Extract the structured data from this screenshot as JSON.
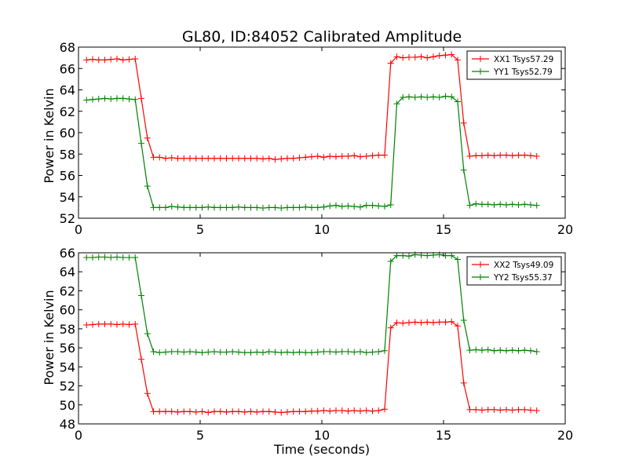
{
  "chart_data": [
    {
      "type": "line",
      "title": "GL80, ID:84052 Calibrated Amplitude",
      "xlabel": "",
      "ylabel": "Power in Kelvin",
      "xlim": [
        0,
        20
      ],
      "ylim": [
        52,
        68
      ],
      "xticks": [
        "0",
        "5",
        "10",
        "15",
        "20"
      ],
      "yticks": [
        "52",
        "54",
        "56",
        "58",
        "60",
        "62",
        "64",
        "66",
        "68"
      ],
      "legend_position": "top-right",
      "grid": false,
      "x": [
        0.33,
        0.58,
        0.83,
        1.08,
        1.33,
        1.58,
        1.83,
        2.08,
        2.33,
        2.58,
        2.83,
        3.08,
        3.33,
        3.58,
        3.83,
        4.08,
        4.33,
        4.58,
        4.83,
        5.08,
        5.33,
        5.58,
        5.83,
        6.08,
        6.33,
        6.58,
        6.83,
        7.08,
        7.33,
        7.58,
        7.83,
        8.08,
        8.33,
        8.58,
        8.83,
        9.08,
        9.33,
        9.58,
        9.83,
        10.08,
        10.33,
        10.58,
        10.83,
        11.08,
        11.33,
        11.58,
        11.83,
        12.08,
        12.33,
        12.58,
        12.83,
        13.08,
        13.33,
        13.58,
        13.83,
        14.08,
        14.33,
        14.58,
        14.83,
        15.08,
        15.33,
        15.58,
        15.83,
        16.08,
        16.33,
        16.58,
        16.83,
        17.08,
        17.33,
        17.58,
        17.83,
        18.08,
        18.33,
        18.58,
        18.83
      ],
      "series": [
        {
          "name": "XX1 Tsys57.29",
          "color": "#ff0000",
          "values": [
            66.8,
            66.85,
            66.8,
            66.8,
            66.85,
            66.9,
            66.8,
            66.85,
            66.9,
            63.2,
            59.5,
            57.7,
            57.7,
            57.6,
            57.65,
            57.6,
            57.6,
            57.6,
            57.6,
            57.6,
            57.6,
            57.6,
            57.6,
            57.6,
            57.6,
            57.6,
            57.6,
            57.6,
            57.6,
            57.55,
            57.6,
            57.5,
            57.55,
            57.6,
            57.6,
            57.65,
            57.7,
            57.75,
            57.8,
            57.7,
            57.8,
            57.75,
            57.8,
            57.8,
            57.85,
            57.75,
            57.8,
            57.85,
            57.9,
            57.9,
            66.5,
            67.1,
            67.0,
            67.05,
            67.05,
            67.1,
            67.0,
            67.1,
            67.2,
            67.25,
            67.3,
            66.8,
            60.9,
            57.8,
            57.85,
            57.85,
            57.9,
            57.85,
            57.9,
            57.9,
            57.85,
            57.9,
            57.9,
            57.85,
            57.8
          ]
        },
        {
          "name": "YY1 Tsys52.79",
          "color": "#008000",
          "values": [
            63.05,
            63.1,
            63.15,
            63.2,
            63.15,
            63.2,
            63.2,
            63.15,
            63.1,
            59.0,
            55.0,
            53.0,
            53.0,
            53.0,
            53.1,
            53.05,
            53.0,
            53.0,
            53.0,
            53.0,
            53.05,
            53.0,
            53.0,
            53.0,
            53.0,
            53.05,
            53.0,
            53.0,
            53.0,
            52.95,
            53.0,
            53.0,
            52.95,
            53.0,
            53.0,
            53.0,
            53.05,
            53.0,
            53.0,
            53.05,
            53.15,
            53.2,
            53.1,
            53.15,
            53.1,
            53.05,
            53.2,
            53.2,
            53.15,
            53.1,
            53.25,
            62.7,
            63.3,
            63.35,
            63.3,
            63.35,
            63.3,
            63.35,
            63.3,
            63.4,
            63.35,
            62.9,
            56.5,
            53.2,
            53.35,
            53.3,
            53.3,
            53.25,
            53.3,
            53.25,
            53.3,
            53.25,
            53.3,
            53.25,
            53.2
          ]
        }
      ]
    },
    {
      "type": "line",
      "title": "",
      "xlabel": "Time (seconds)",
      "ylabel": "Power in Kelvin",
      "xlim": [
        0,
        20
      ],
      "ylim": [
        48,
        66
      ],
      "xticks": [
        "0",
        "5",
        "10",
        "15",
        "20"
      ],
      "yticks": [
        "48",
        "50",
        "52",
        "54",
        "56",
        "58",
        "60",
        "62",
        "64",
        "66"
      ],
      "legend_position": "top-right",
      "grid": false,
      "x": [
        0.33,
        0.58,
        0.83,
        1.08,
        1.33,
        1.58,
        1.83,
        2.08,
        2.33,
        2.58,
        2.83,
        3.08,
        3.33,
        3.58,
        3.83,
        4.08,
        4.33,
        4.58,
        4.83,
        5.08,
        5.33,
        5.58,
        5.83,
        6.08,
        6.33,
        6.58,
        6.83,
        7.08,
        7.33,
        7.58,
        7.83,
        8.08,
        8.33,
        8.58,
        8.83,
        9.08,
        9.33,
        9.58,
        9.83,
        10.08,
        10.33,
        10.58,
        10.83,
        11.08,
        11.33,
        11.58,
        11.83,
        12.08,
        12.33,
        12.58,
        12.83,
        13.08,
        13.33,
        13.58,
        13.83,
        14.08,
        14.33,
        14.58,
        14.83,
        15.08,
        15.33,
        15.58,
        15.83,
        16.08,
        16.33,
        16.58,
        16.83,
        17.08,
        17.33,
        17.58,
        17.83,
        18.08,
        18.33,
        18.58,
        18.83
      ],
      "series": [
        {
          "name": "XX2 Tsys49.09",
          "color": "#ff0000",
          "values": [
            58.4,
            58.45,
            58.5,
            58.5,
            58.5,
            58.45,
            58.5,
            58.45,
            58.5,
            54.8,
            51.2,
            49.3,
            49.3,
            49.3,
            49.3,
            49.25,
            49.3,
            49.3,
            49.25,
            49.3,
            49.2,
            49.3,
            49.3,
            49.25,
            49.3,
            49.3,
            49.25,
            49.3,
            49.25,
            49.3,
            49.3,
            49.25,
            49.2,
            49.25,
            49.3,
            49.3,
            49.3,
            49.35,
            49.35,
            49.4,
            49.35,
            49.4,
            49.4,
            49.35,
            49.4,
            49.35,
            49.4,
            49.35,
            49.4,
            49.55,
            58.1,
            58.65,
            58.6,
            58.65,
            58.7,
            58.65,
            58.7,
            58.65,
            58.7,
            58.7,
            58.75,
            58.3,
            52.3,
            49.5,
            49.5,
            49.45,
            49.5,
            49.5,
            49.45,
            49.5,
            49.45,
            49.5,
            49.5,
            49.45,
            49.4
          ]
        },
        {
          "name": "YY2 Tsys55.37",
          "color": "#008000",
          "values": [
            65.5,
            65.5,
            65.55,
            65.55,
            65.5,
            65.55,
            65.5,
            65.5,
            65.5,
            61.5,
            57.5,
            55.6,
            55.5,
            55.55,
            55.6,
            55.6,
            55.55,
            55.6,
            55.55,
            55.5,
            55.55,
            55.6,
            55.55,
            55.55,
            55.6,
            55.55,
            55.5,
            55.5,
            55.55,
            55.5,
            55.6,
            55.55,
            55.5,
            55.55,
            55.5,
            55.55,
            55.5,
            55.5,
            55.55,
            55.6,
            55.6,
            55.55,
            55.6,
            55.6,
            55.55,
            55.6,
            55.5,
            55.55,
            55.6,
            55.7,
            65.1,
            65.7,
            65.7,
            65.65,
            65.8,
            65.75,
            65.7,
            65.75,
            65.8,
            65.7,
            65.7,
            65.3,
            58.9,
            55.75,
            55.8,
            55.75,
            55.8,
            55.7,
            55.75,
            55.7,
            55.75,
            55.7,
            55.75,
            55.7,
            55.6
          ]
        }
      ]
    }
  ]
}
